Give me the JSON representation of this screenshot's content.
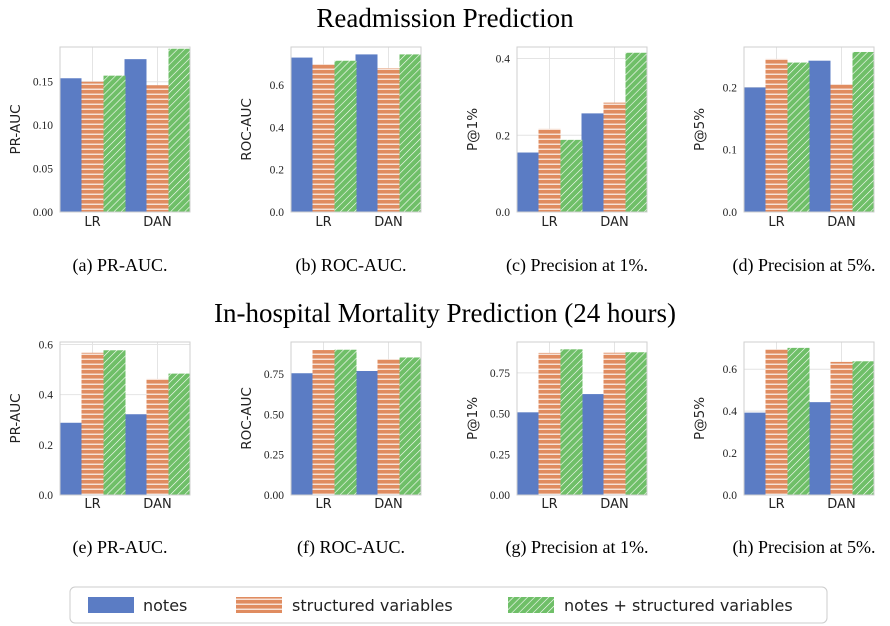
{
  "sections": [
    {
      "title": "Readmission Prediction"
    },
    {
      "title": "In-hospital Mortality Prediction (24 hours)"
    }
  ],
  "legend": {
    "items": [
      {
        "label": "notes",
        "color": "#5b7cc4",
        "pattern": "solid"
      },
      {
        "label": "structured variables",
        "color": "#e08c60",
        "pattern": "horizontal-stripes"
      },
      {
        "label": "notes + structured variables",
        "color": "#6fbf68",
        "pattern": "diagonal-stripes"
      }
    ],
    "position": "bottom-center"
  },
  "chart_data": [
    {
      "type": "bar",
      "caption": "(a) PR-AUC.",
      "ylabel": "PR-AUC",
      "categories": [
        "LR",
        "DAN"
      ],
      "ylim": [
        0,
        0.19
      ],
      "yticks": [
        0.0,
        0.05,
        0.1,
        0.15
      ],
      "ytick_labels": [
        "0.00",
        "0.05",
        "0.10",
        "0.15"
      ],
      "grid": true,
      "series": [
        {
          "name": "notes",
          "values": [
            0.154,
            0.176
          ]
        },
        {
          "name": "structured variables",
          "values": [
            0.15,
            0.146
          ]
        },
        {
          "name": "notes + structured variables",
          "values": [
            0.157,
            0.188
          ]
        }
      ]
    },
    {
      "type": "bar",
      "caption": "(b) ROC-AUC.",
      "ylabel": "ROC-AUC",
      "categories": [
        "LR",
        "DAN"
      ],
      "ylim": [
        0,
        0.78
      ],
      "yticks": [
        0.0,
        0.2,
        0.4,
        0.6
      ],
      "ytick_labels": [
        "0.0",
        "0.2",
        "0.4",
        "0.6"
      ],
      "grid": true,
      "series": [
        {
          "name": "notes",
          "values": [
            0.73,
            0.745
          ]
        },
        {
          "name": "structured variables",
          "values": [
            0.698,
            0.68
          ]
        },
        {
          "name": "notes + structured variables",
          "values": [
            0.715,
            0.745
          ]
        }
      ]
    },
    {
      "type": "bar",
      "caption": "(c) Precision at 1%.",
      "ylabel": "P@1%",
      "categories": [
        "LR",
        "DAN"
      ],
      "ylim": [
        0,
        0.43
      ],
      "yticks": [
        0.0,
        0.2,
        0.4
      ],
      "ytick_labels": [
        "0.0",
        "0.2",
        "0.4"
      ],
      "grid": true,
      "series": [
        {
          "name": "notes",
          "values": [
            0.155,
            0.257
          ]
        },
        {
          "name": "structured variables",
          "values": [
            0.217,
            0.285
          ]
        },
        {
          "name": "notes + structured variables",
          "values": [
            0.188,
            0.415
          ]
        }
      ]
    },
    {
      "type": "bar",
      "caption": "(d) Precision at 5%.",
      "ylabel": "P@5%",
      "categories": [
        "LR",
        "DAN"
      ],
      "ylim": [
        0,
        0.265
      ],
      "yticks": [
        0.0,
        0.1,
        0.2
      ],
      "ytick_labels": [
        "0.0",
        "0.1",
        "0.2"
      ],
      "grid": true,
      "series": [
        {
          "name": "notes",
          "values": [
            0.2,
            0.243
          ]
        },
        {
          "name": "structured variables",
          "values": [
            0.246,
            0.205
          ]
        },
        {
          "name": "notes + structured variables",
          "values": [
            0.24,
            0.257
          ]
        }
      ]
    },
    {
      "type": "bar",
      "caption": "(e) PR-AUC.",
      "ylabel": "PR-AUC",
      "categories": [
        "LR",
        "DAN"
      ],
      "ylim": [
        0,
        0.61
      ],
      "yticks": [
        0.0,
        0.2,
        0.4,
        0.6
      ],
      "ytick_labels": [
        "0.0",
        "0.2",
        "0.4",
        "0.6"
      ],
      "grid": true,
      "series": [
        {
          "name": "notes",
          "values": [
            0.288,
            0.322
          ]
        },
        {
          "name": "structured variables",
          "values": [
            0.567,
            0.463
          ]
        },
        {
          "name": "notes + structured variables",
          "values": [
            0.577,
            0.484
          ]
        }
      ]
    },
    {
      "type": "bar",
      "caption": "(f) ROC-AUC.",
      "ylabel": "ROC-AUC",
      "categories": [
        "LR",
        "DAN"
      ],
      "ylim": [
        0,
        0.95
      ],
      "yticks": [
        0.0,
        0.25,
        0.5,
        0.75
      ],
      "ytick_labels": [
        "0.00",
        "0.25",
        "0.50",
        "0.75"
      ],
      "grid": true,
      "series": [
        {
          "name": "notes",
          "values": [
            0.756,
            0.77
          ]
        },
        {
          "name": "structured variables",
          "values": [
            0.9,
            0.843
          ]
        },
        {
          "name": "notes + structured variables",
          "values": [
            0.902,
            0.854
          ]
        }
      ]
    },
    {
      "type": "bar",
      "caption": "(g) Precision at 1%.",
      "ylabel": "P@1%",
      "categories": [
        "LR",
        "DAN"
      ],
      "ylim": [
        0,
        0.94
      ],
      "yticks": [
        0.0,
        0.25,
        0.5,
        0.75
      ],
      "ytick_labels": [
        "0.00",
        "0.25",
        "0.50",
        "0.75"
      ],
      "grid": true,
      "series": [
        {
          "name": "notes",
          "values": [
            0.508,
            0.62
          ]
        },
        {
          "name": "structured variables",
          "values": [
            0.873,
            0.874
          ]
        },
        {
          "name": "notes + structured variables",
          "values": [
            0.895,
            0.877
          ]
        }
      ]
    },
    {
      "type": "bar",
      "caption": "(h) Precision at 5%.",
      "ylabel": "P@5%",
      "categories": [
        "LR",
        "DAN"
      ],
      "ylim": [
        0,
        0.73
      ],
      "yticks": [
        0.0,
        0.2,
        0.4,
        0.6
      ],
      "ytick_labels": [
        "0.0",
        "0.2",
        "0.4",
        "0.6"
      ],
      "grid": true,
      "series": [
        {
          "name": "notes",
          "values": [
            0.393,
            0.443
          ]
        },
        {
          "name": "structured variables",
          "values": [
            0.695,
            0.635
          ]
        },
        {
          "name": "notes + structured variables",
          "values": [
            0.702,
            0.638
          ]
        }
      ]
    }
  ]
}
